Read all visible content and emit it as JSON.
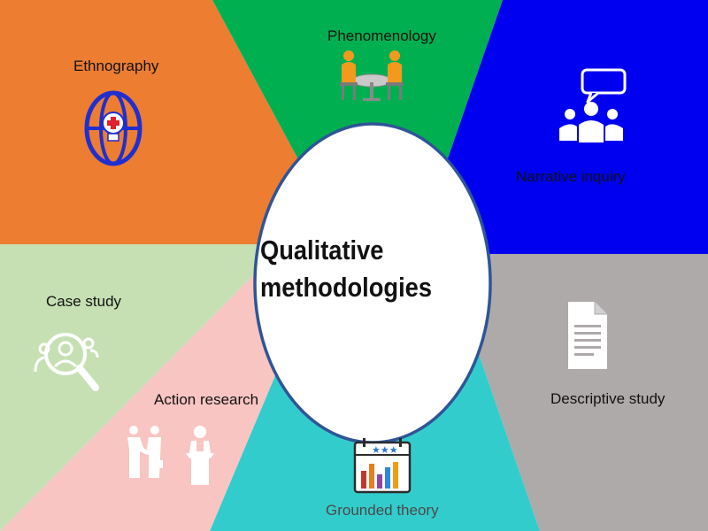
{
  "center": {
    "line1": "Qualitative",
    "line2": "methodologies"
  },
  "methods": [
    {
      "id": "ethnography",
      "label": "Ethnography",
      "color": "#ED7D31",
      "icon": "globe-idea-icon"
    },
    {
      "id": "phenomenology",
      "label": "Phenomenology",
      "color": "#00B050",
      "icon": "meeting-table-icon"
    },
    {
      "id": "narrative",
      "label": "Narrative inquiry",
      "color": "#0000F0",
      "icon": "group-speech-icon"
    },
    {
      "id": "descriptive",
      "label": "Descriptive study",
      "color": "#AEAAAA",
      "icon": "document-icon"
    },
    {
      "id": "grounded",
      "label": "Grounded theory",
      "color": "#33CCCC",
      "icon": "bar-chart-calendar-icon"
    },
    {
      "id": "action",
      "label": "Action research",
      "color": "#F8C5C2",
      "icon": "presentation-people-icon"
    },
    {
      "id": "case",
      "label": "Case study",
      "color": "#C6E0B4",
      "icon": "magnifier-person-icon"
    }
  ]
}
